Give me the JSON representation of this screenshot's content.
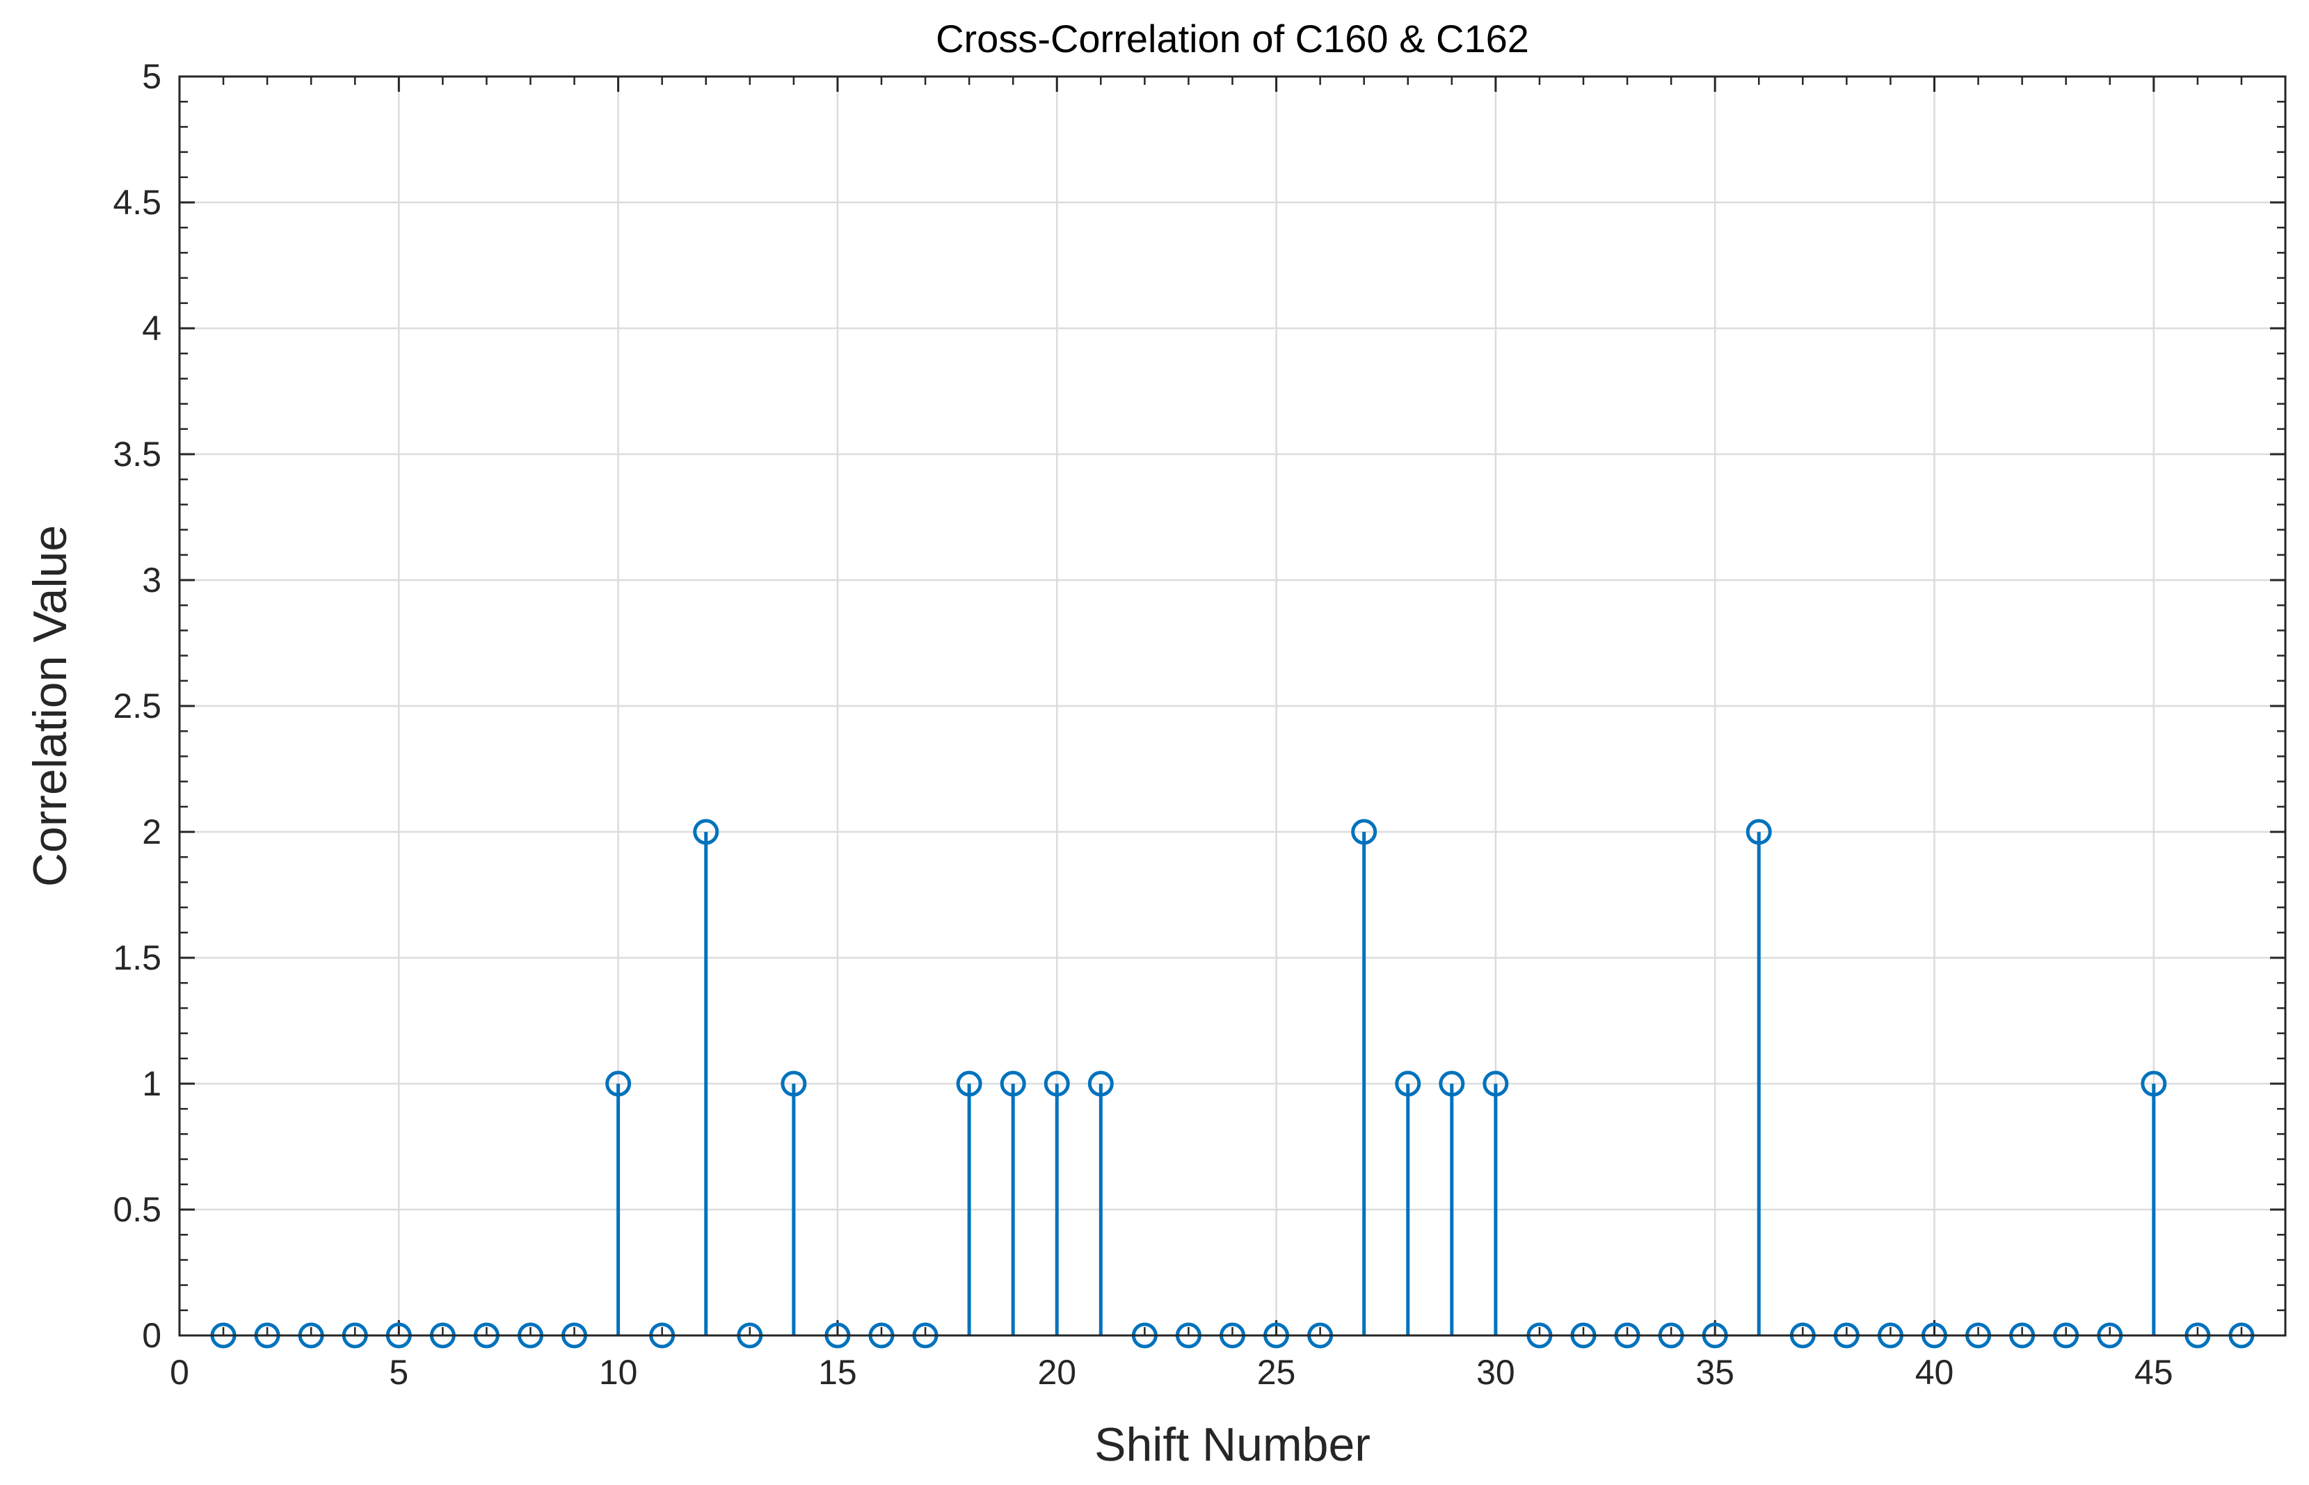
{
  "chart_data": {
    "type": "stem",
    "title": "Cross-Correlation of C160 & C162",
    "xlabel": "Shift Number",
    "ylabel": "Correlation Value",
    "xlim": [
      0,
      48
    ],
    "ylim": [
      0,
      5
    ],
    "xticks": [
      0,
      5,
      10,
      15,
      20,
      25,
      30,
      35,
      40,
      45
    ],
    "xtick_labels": [
      "0",
      "5",
      "10",
      "15",
      "20",
      "25",
      "30",
      "35",
      "40",
      "45"
    ],
    "yticks": [
      0,
      0.5,
      1,
      1.5,
      2,
      2.5,
      3,
      3.5,
      4,
      4.5,
      5
    ],
    "ytick_labels": [
      "0",
      "0.5",
      "1",
      "1.5",
      "2",
      "2.5",
      "3",
      "3.5",
      "4",
      "4.5",
      "5"
    ],
    "grid": true,
    "color": "#0072BD",
    "x": [
      1,
      2,
      3,
      4,
      5,
      6,
      7,
      8,
      9,
      10,
      11,
      12,
      13,
      14,
      15,
      16,
      17,
      18,
      19,
      20,
      21,
      22,
      23,
      24,
      25,
      26,
      27,
      28,
      29,
      30,
      31,
      32,
      33,
      34,
      35,
      36,
      37,
      38,
      39,
      40,
      41,
      42,
      43,
      44,
      45,
      46,
      47
    ],
    "y": [
      0,
      0,
      0,
      0,
      0,
      0,
      0,
      0,
      0,
      1,
      0,
      2,
      0,
      1,
      0,
      0,
      0,
      1,
      1,
      1,
      1,
      0,
      0,
      0,
      0,
      0,
      2,
      1,
      1,
      1,
      0,
      0,
      0,
      0,
      0,
      2,
      0,
      0,
      0,
      0,
      0,
      0,
      0,
      0,
      1,
      0,
      0
    ]
  }
}
